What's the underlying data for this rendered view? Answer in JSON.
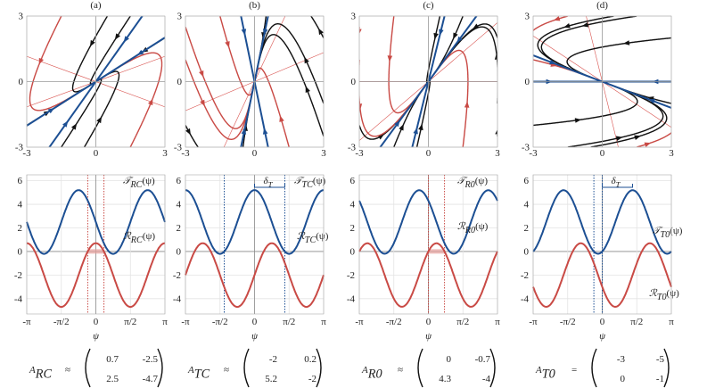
{
  "panels": [
    {
      "label": "(a)",
      "curves": [
        {
          "symbol": "𝒯",
          "sub": "RC",
          "arg": "(ψ)",
          "color": "#1c4f93"
        },
        {
          "symbol": "ℛ",
          "sub": "RC",
          "arg": "(ψ)",
          "color": "#c94a45"
        }
      ],
      "matrix": {
        "symbol": "A",
        "sub": "RC",
        "relation": "≈",
        "entries": [
          [
            0.7,
            -2.5
          ],
          [
            2.5,
            -4.7
          ]
        ]
      }
    },
    {
      "label": "(b)",
      "curves": [
        {
          "symbol": "𝒯",
          "sub": "TC",
          "arg": "(ψ)",
          "color": "#1c4f93"
        },
        {
          "symbol": "ℛ",
          "sub": "TC",
          "arg": "(ψ)",
          "color": "#c94a45"
        }
      ],
      "annotation": {
        "symbol": "δ",
        "sub": "T"
      },
      "matrix": {
        "symbol": "A",
        "sub": "TC",
        "relation": "≈",
        "entries": [
          [
            -2,
            0.2
          ],
          [
            5.2,
            -2
          ]
        ]
      }
    },
    {
      "label": "(c)",
      "curves": [
        {
          "symbol": "𝒯",
          "sub": "R0",
          "arg": "(ψ)",
          "color": "#1c4f93"
        },
        {
          "symbol": "ℛ",
          "sub": "R0",
          "arg": "(ψ)",
          "color": "#c94a45"
        }
      ],
      "matrix": {
        "symbol": "A",
        "sub": "R0",
        "relation": "≈",
        "entries": [
          [
            0,
            -0.7
          ],
          [
            4.3,
            -4
          ]
        ]
      }
    },
    {
      "label": "(d)",
      "curves": [
        {
          "symbol": "𝒯",
          "sub": "T0",
          "arg": "(ψ)",
          "color": "#1c4f93"
        },
        {
          "symbol": "ℛ",
          "sub": "T0",
          "arg": "(ψ)",
          "color": "#c94a45"
        }
      ],
      "annotation": {
        "symbol": "δ",
        "sub": "T"
      },
      "matrix": {
        "symbol": "A",
        "sub": "T0",
        "relation": "=",
        "entries": [
          [
            -3,
            -5
          ],
          [
            0,
            -1
          ]
        ]
      }
    }
  ],
  "phase_axes": {
    "xlim": [
      -3,
      3
    ],
    "ylim": [
      -3,
      3
    ],
    "xticks": [
      -3,
      0,
      3
    ],
    "yticks": [
      -3,
      0,
      3
    ]
  },
  "plot_axes": {
    "xlim": [
      -3.14159,
      3.14159
    ],
    "ylim": [
      -5.3,
      6.5
    ],
    "xticks": [
      {
        "value": -3.14159,
        "label": "-π"
      },
      {
        "value": -1.5708,
        "label": "-π/2"
      },
      0,
      {
        "value": 1.5708,
        "label": "π/2"
      },
      {
        "value": 3.14159,
        "label": "π"
      }
    ],
    "yticks": [
      -4,
      -2,
      0,
      2,
      4,
      6
    ],
    "xlabel": "ψ"
  }
}
